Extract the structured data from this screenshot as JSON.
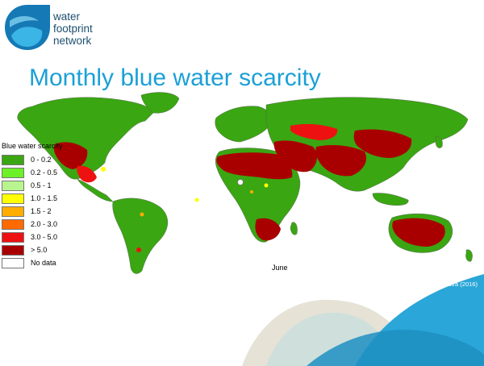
{
  "logo": {
    "line1": "water",
    "line2": "footprint",
    "line3": "network"
  },
  "title": "Monthly blue water scarcity",
  "legend": {
    "title": "Blue water scarcity",
    "items": [
      {
        "label": "0 - 0.2",
        "color": "#3aa612"
      },
      {
        "label": "0.2 - 0.5",
        "color": "#6df028"
      },
      {
        "label": "0.5 - 1",
        "color": "#b8f58f"
      },
      {
        "label": "1.0 - 1.5",
        "color": "#ffff00"
      },
      {
        "label": "1.5 - 2",
        "color": "#ffae00"
      },
      {
        "label": "2.0 - 3.0",
        "color": "#ff6a00"
      },
      {
        "label": "3.0 - 5.0",
        "color": "#ee1111"
      },
      {
        "label": "> 5.0",
        "color": "#a80000"
      },
      {
        "label": "No data",
        "color": "#ffffff"
      }
    ]
  },
  "month": "June",
  "credit": "Mekonnen & Hoekstra (2016)",
  "colors": {
    "brand_blue": "#1ba0d6",
    "ocean_wave": "#2aa6d8",
    "land_low": "#3aa612",
    "land_high": "#a80000"
  }
}
